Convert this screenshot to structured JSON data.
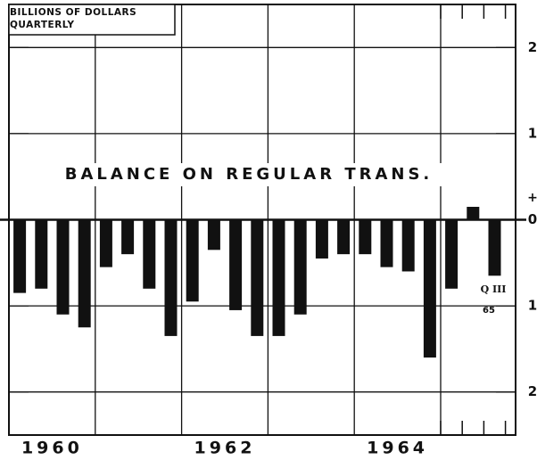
{
  "chart_data": {
    "type": "bar",
    "title": "BALANCE ON REGULAR TRANS.",
    "ylabel": [
      "BILLIONS OF DOLLARS",
      "QUARTERLY"
    ],
    "annotations": [
      "+",
      "Q III",
      "65"
    ],
    "categories": [
      "1960",
      null,
      null,
      null,
      null,
      null,
      null,
      null,
      "1962",
      null,
      null,
      null,
      null,
      null,
      null,
      null,
      "1964",
      null,
      null,
      null,
      null,
      null,
      null
    ],
    "values": [
      -0.85,
      -0.8,
      -1.1,
      -1.25,
      -0.55,
      -0.4,
      -0.8,
      -1.35,
      -0.95,
      -0.35,
      -1.05,
      -1.35,
      -1.35,
      -1.1,
      -0.45,
      -0.4,
      -0.4,
      -0.55,
      -0.6,
      -1.6,
      -0.8,
      0.15,
      -0.65
    ],
    "color": "#111111",
    "ylim": [
      -2.5,
      2.5
    ],
    "yticks": [
      2,
      1,
      0,
      {
        "value": -1,
        "label": "1"
      },
      {
        "value": -2,
        "label": "2"
      }
    ],
    "grid": true
  }
}
